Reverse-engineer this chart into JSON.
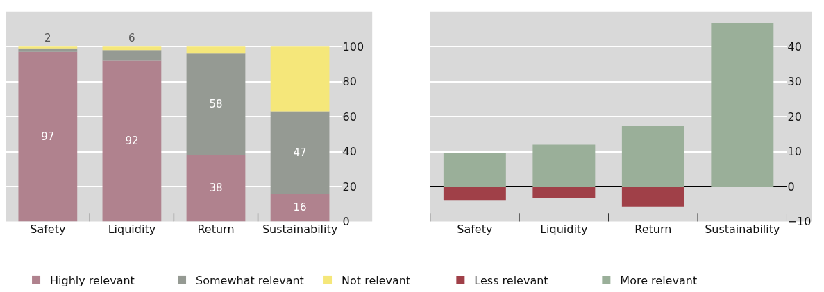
{
  "chart_data": [
    {
      "type": "bar",
      "stacked": true,
      "categories": [
        "Safety",
        "Liquidity",
        "Return",
        "Sustainability"
      ],
      "ylim": [
        0,
        120
      ],
      "yticks": [
        0,
        20,
        40,
        60,
        80,
        100
      ],
      "grid": true,
      "legend": "bottom",
      "series": [
        {
          "name": "Highly relevant",
          "color": "#b0828e",
          "values": [
            97,
            92,
            38,
            16
          ],
          "value_labels": [
            "97",
            "92",
            "38",
            "16"
          ]
        },
        {
          "name": "Somewhat relevant",
          "color": "#959a93",
          "values": [
            2,
            6,
            58,
            47
          ],
          "value_labels": [
            "2",
            "6",
            "58",
            "47"
          ]
        },
        {
          "name": "Not relevant",
          "color": "#f5e77a",
          "values": [
            1,
            2,
            4,
            37
          ]
        }
      ]
    },
    {
      "type": "bar",
      "stacked": true,
      "categories": [
        "Safety",
        "Liquidity",
        "Return",
        "Sustainability"
      ],
      "ylim": [
        -10,
        50
      ],
      "yticks": [
        -10,
        0,
        10,
        20,
        30,
        40
      ],
      "grid": true,
      "legend": "bottom",
      "series": [
        {
          "name": "Less relevant",
          "color": "#a04048",
          "values": [
            -4,
            -3.2,
            -5.7,
            0
          ]
        },
        {
          "name": "More relevant",
          "color": "#9aaf99",
          "values": [
            9.5,
            12,
            17.4,
            46.8
          ]
        }
      ]
    }
  ]
}
